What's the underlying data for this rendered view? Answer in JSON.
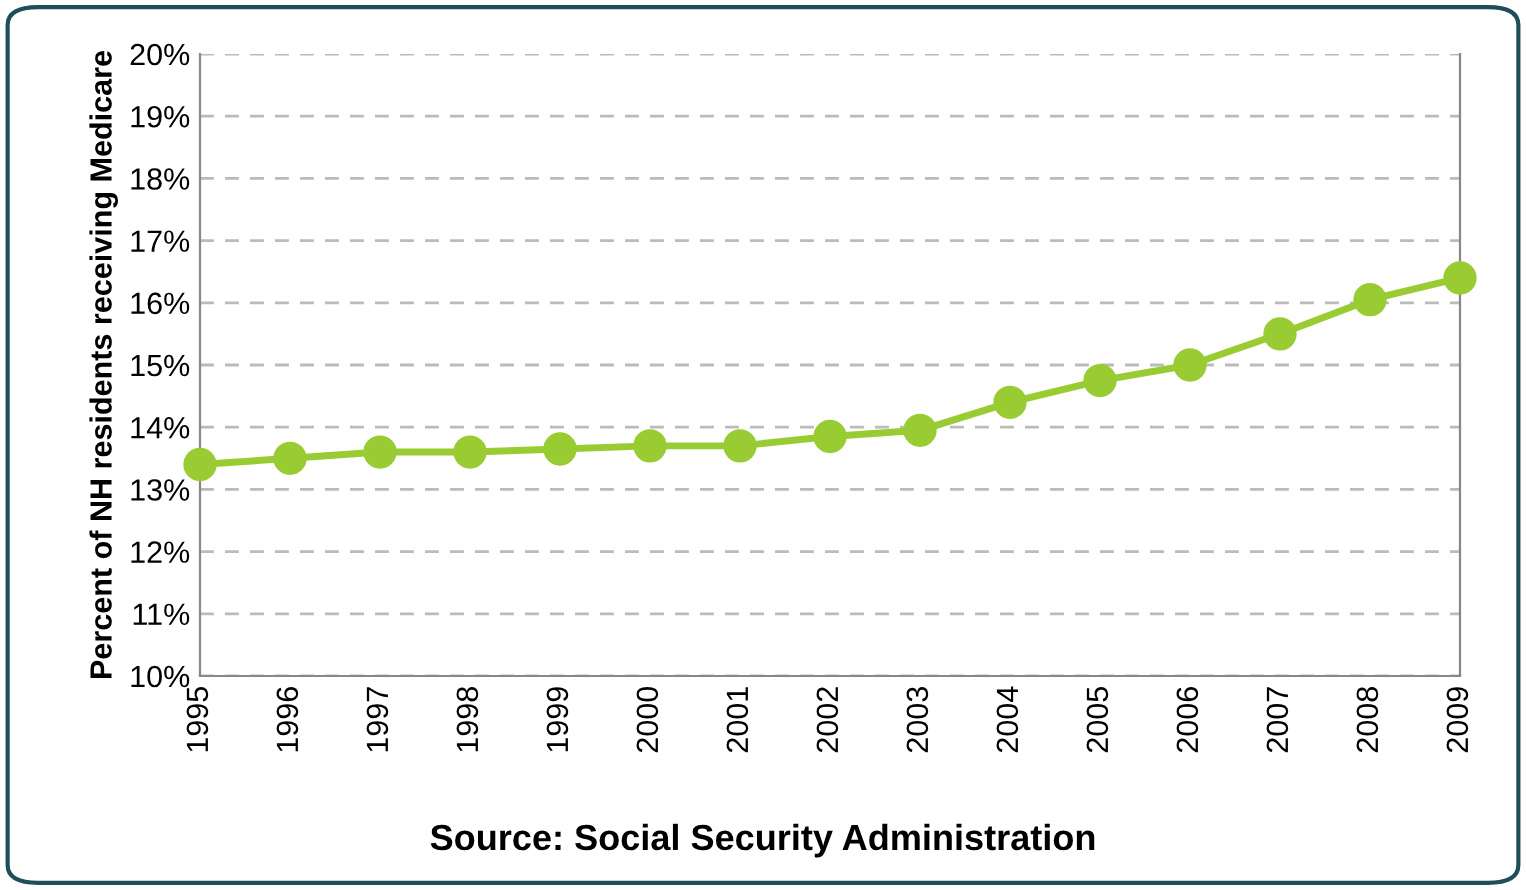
{
  "chart_data": {
    "type": "line",
    "ylabel": "Percent of NH residents receiving Medicare",
    "annotations": [
      "Source: Social Security Administration"
    ],
    "categories": [
      "1995",
      "1996",
      "1997",
      "1998",
      "1999",
      "2000",
      "2001",
      "2002",
      "2003",
      "2004",
      "2005",
      "2006",
      "2007",
      "2008",
      "2009"
    ],
    "series": [
      {
        "color": "#99cc33",
        "values": [
          13.4,
          13.5,
          13.6,
          13.6,
          13.65,
          13.7,
          13.7,
          13.85,
          13.95,
          14.4,
          14.75,
          15.0,
          15.5,
          16.05,
          16.4
        ]
      }
    ],
    "ylim": [
      10,
      20
    ],
    "yticks": [
      {
        "value": 10,
        "label": "10%"
      },
      {
        "value": 11,
        "label": "11%"
      },
      {
        "value": 12,
        "label": "12%"
      },
      {
        "value": 13,
        "label": "13%"
      },
      {
        "value": 14,
        "label": "14%"
      },
      {
        "value": 15,
        "label": "15%"
      },
      {
        "value": 16,
        "label": "16%"
      },
      {
        "value": 17,
        "label": "17%"
      },
      {
        "value": 18,
        "label": "18%"
      },
      {
        "value": 19,
        "label": "19%"
      },
      {
        "value": 20,
        "label": "20%"
      }
    ],
    "grid": "y",
    "marker": "circle",
    "line_style": "solid"
  }
}
